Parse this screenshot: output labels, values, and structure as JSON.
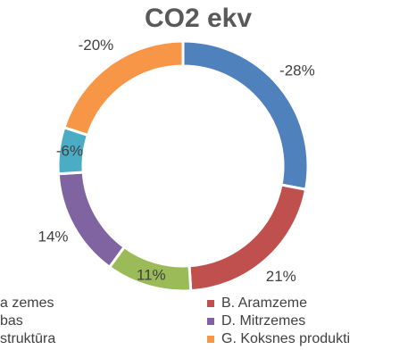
{
  "chart_data": {
    "type": "donut",
    "title": "CO2 ekv",
    "categories": [
      "a zemes",
      "B. Aramzeme",
      "bas",
      "D. Mitrzemes",
      "struktūra",
      "G. Koksnes produkti"
    ],
    "values": [
      -28,
      21,
      11,
      14,
      -6,
      -20
    ],
    "value_labels": [
      "-28%",
      "21%",
      "11%",
      "14%",
      "-6%",
      "-20%"
    ],
    "colors": [
      "#4f81bd",
      "#c0504d",
      "#9bbb59",
      "#8064a2",
      "#4bacc6",
      "#f79646"
    ]
  }
}
